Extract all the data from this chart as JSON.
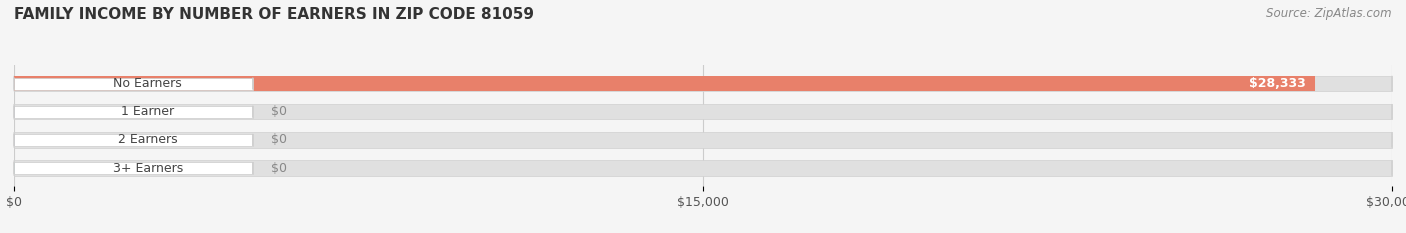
{
  "title": "FAMILY INCOME BY NUMBER OF EARNERS IN ZIP CODE 81059",
  "source": "Source: ZipAtlas.com",
  "categories": [
    "No Earners",
    "1 Earner",
    "2 Earners",
    "3+ Earners"
  ],
  "values": [
    28333,
    0,
    0,
    0
  ],
  "bar_colors": [
    "#e8806a",
    "#a8bfdf",
    "#c9a8d4",
    "#7ecece"
  ],
  "bar_height": 0.55,
  "xlim": [
    0,
    30000
  ],
  "xticks": [
    0,
    15000,
    30000
  ],
  "xticklabels": [
    "$0",
    "$15,000",
    "$30,000"
  ],
  "background_color": "#f5f5f5",
  "title_fontsize": 11,
  "source_fontsize": 8.5,
  "label_fontsize": 9,
  "value_fontsize": 9
}
